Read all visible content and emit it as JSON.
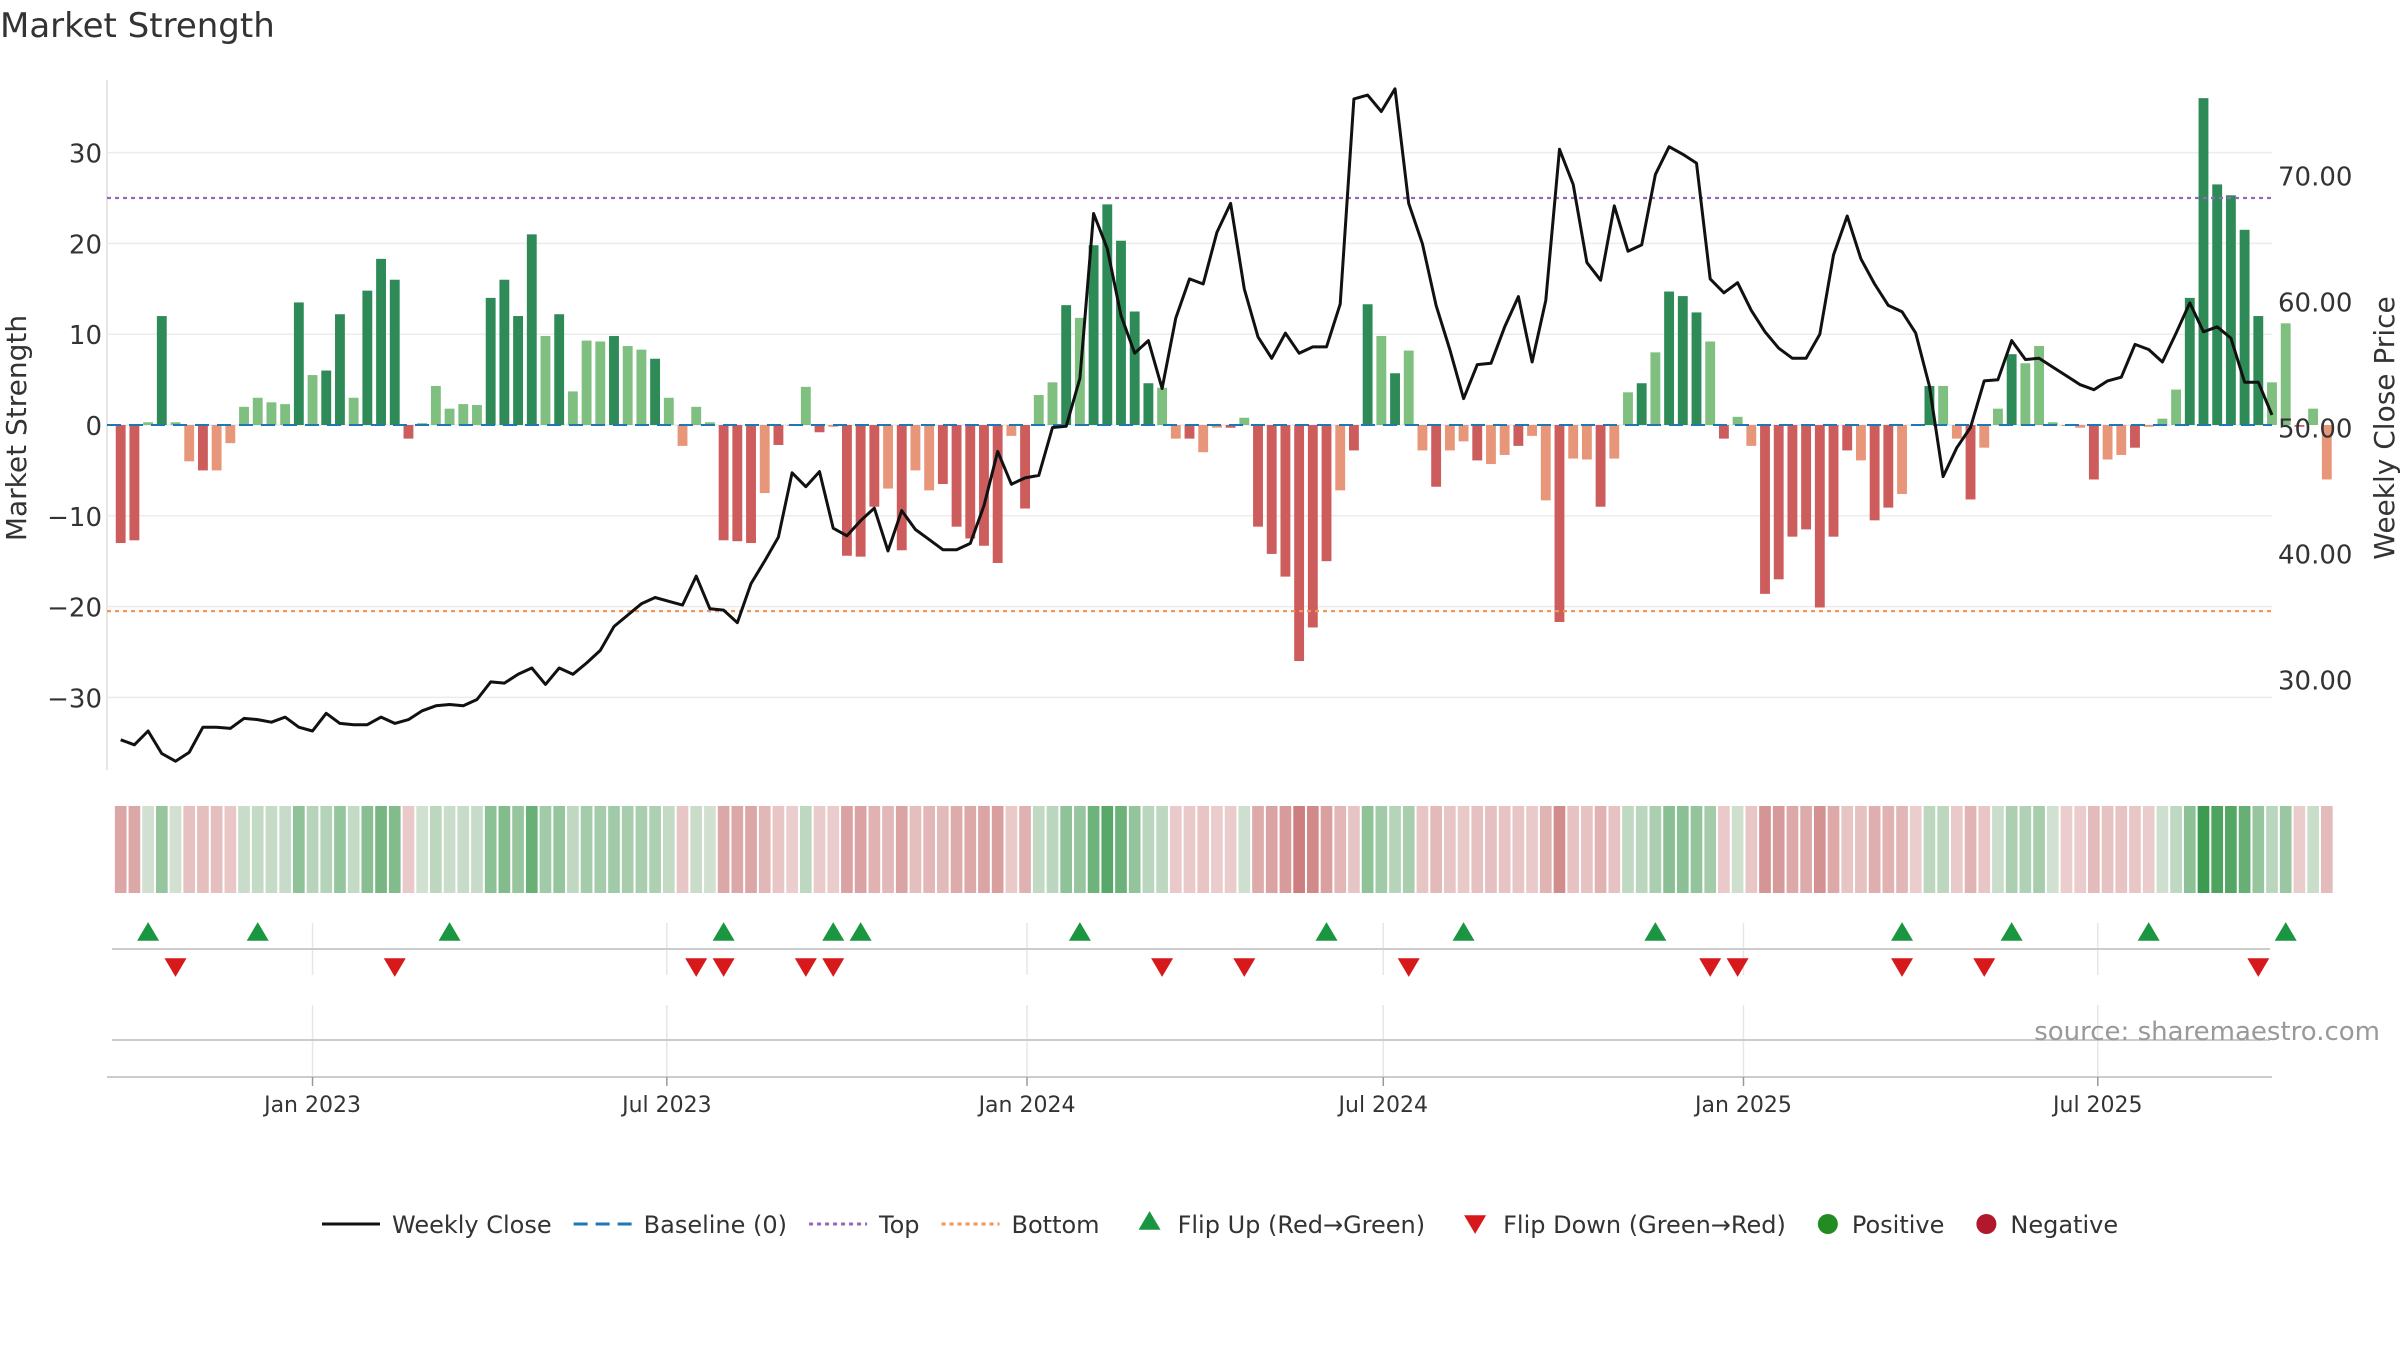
{
  "chart_data": {
    "type": "bar+line",
    "title": "Market Strength",
    "ylabel_left": "Market Strength",
    "ylabel_right": "Weekly Close Price",
    "y_left_ticks": [
      30,
      20,
      10,
      0,
      -10,
      -20,
      -30
    ],
    "y_left_tick_labels": [
      "30",
      "20",
      "10",
      "0",
      "−10",
      "−20",
      "−30"
    ],
    "y_right_ticks": [
      70,
      60,
      50,
      40,
      30
    ],
    "y_right_tick_labels": [
      "70.00",
      "60.00",
      "50.00",
      "40.00",
      "30.00"
    ],
    "y_left_range": [
      -38,
      38
    ],
    "y_right_range": [
      22.8,
      77.6
    ],
    "x_range": [
      "2022-09-18",
      "2025-09-28"
    ],
    "x_ticks": [
      "2023-01-01",
      "2023-07-01",
      "2024-01-01",
      "2024-07-01",
      "2025-01-01",
      "2025-07-01"
    ],
    "x_tick_labels": [
      "Jan 2023",
      "Jul 2023",
      "Jan 2024",
      "Jul 2024",
      "Jan 2025",
      "Jul 2025"
    ],
    "start_week": "2022-09-25",
    "top_line": 25,
    "bottom_line": -20.5,
    "baseline": 0,
    "grid": true,
    "legend_position": "bottom",
    "strength": [
      -13,
      -12.7,
      0.3,
      12,
      0.3,
      -4,
      -5,
      -5,
      -2,
      2,
      3,
      2.5,
      2.3,
      13.5,
      5.5,
      6,
      12.2,
      3,
      14.8,
      18.3,
      16,
      -1.5,
      0.2,
      4.3,
      1.8,
      2.3,
      2.2,
      14,
      16,
      12,
      21,
      9.8,
      12.2,
      3.7,
      9.3,
      9.2,
      9.8,
      8.7,
      8.3,
      7.3,
      3,
      -2.3,
      2,
      0.3,
      -12.7,
      -12.8,
      -13,
      -7.5,
      -2.2,
      -0.1,
      4.2,
      -0.8,
      -0.2,
      -14.4,
      -14.5,
      -9,
      -7,
      -13.8,
      -5,
      -7.2,
      -6.5,
      -11.2,
      -12.5,
      -13.3,
      -15.2,
      -1.2,
      -9.2,
      3.3,
      4.7,
      13.2,
      11.8,
      19.8,
      24.3,
      20.3,
      12.5,
      4.6,
      4.1,
      -1.5,
      -1.5,
      -3,
      -0.3,
      -0.3,
      0.8,
      -11.2,
      -14.2,
      -16.7,
      -26,
      -22.3,
      -15,
      -7.2,
      -2.8,
      13.3,
      9.8,
      5.7,
      8.2,
      -2.8,
      -6.8,
      -2.8,
      -1.8,
      -3.9,
      -4.3,
      -3.3,
      -2.3,
      -1.2,
      -8.3,
      -21.7,
      -3.7,
      -3.8,
      -9,
      -3.7,
      3.6,
      4.6,
      8,
      14.7,
      14.2,
      12.4,
      9.2,
      -1.5,
      0.9,
      -2.3,
      -18.6,
      -17,
      -12.3,
      -11.5,
      -20.1,
      -12.3,
      -2.8,
      -3.9,
      -10.5,
      -9.1,
      -7.6,
      -0.1,
      4.3,
      4.3,
      -1.5,
      -8.2,
      -2.5,
      1.8,
      7.8,
      6.8,
      8.7,
      0.3,
      -0.1,
      -0.3,
      -6,
      -3.8,
      -3.3,
      -2.5,
      -0.2,
      0.7,
      3.9,
      14,
      36,
      26.5,
      25.3,
      21.5,
      12,
      4.7,
      11.2,
      -0.2,
      1.8,
      -6
    ],
    "close": [
      25.2,
      24.8,
      25.9,
      24.1,
      23.5,
      24.2,
      26.2,
      26.2,
      26.1,
      26.9,
      26.8,
      26.6,
      27.0,
      26.2,
      25.9,
      27.3,
      26.5,
      26.4,
      26.4,
      27.0,
      26.5,
      26.8,
      27.5,
      27.9,
      28.0,
      27.9,
      28.4,
      29.8,
      29.7,
      30.4,
      30.9,
      29.6,
      30.9,
      30.4,
      31.3,
      32.3,
      34.2,
      35.1,
      36.0,
      36.5,
      36.2,
      35.9,
      38.2,
      35.6,
      35.5,
      34.5,
      37.6,
      39.4,
      41.3,
      46.4,
      45.3,
      46.5,
      42.0,
      41.4,
      42.6,
      43.6,
      40.2,
      43.4,
      41.9,
      41.1,
      40.3,
      40.3,
      40.8,
      43.8,
      48.1,
      45.5,
      46.0,
      46.2,
      50.0,
      50.1,
      53.9,
      67.0,
      64.2,
      58.9,
      55.9,
      56.9,
      53.1,
      58.7,
      61.8,
      61.4,
      65.5,
      67.8,
      61.0,
      57.2,
      55.5,
      57.5,
      55.9,
      56.4,
      56.4,
      59.8,
      76.1,
      76.4,
      75.1,
      76.9,
      67.8,
      64.6,
      59.7,
      56.2,
      52.3,
      55.0,
      55.1,
      58.0,
      60.4,
      55.2,
      60.1,
      72.1,
      69.3,
      63.1,
      61.7,
      67.6,
      64.0,
      64.5,
      70.1,
      72.3,
      71.7,
      71.0,
      61.8,
      60.7,
      61.5,
      59.3,
      57.6,
      56.3,
      55.5,
      55.5,
      57.4,
      63.7,
      66.8,
      63.4,
      61.4,
      59.7,
      59.2,
      57.5,
      53.3,
      46.1,
      48.4,
      50.0,
      53.7,
      53.8,
      56.9,
      55.4,
      55.5,
      54.8,
      54.1,
      53.4,
      53.0,
      53.7,
      54.0,
      56.6,
      56.2,
      55.2,
      57.5,
      59.9,
      57.6,
      58.0,
      57.1,
      53.6,
      53.6,
      51.0
    ],
    "flip_up_weeks": [
      1,
      5,
      12,
      22,
      26,
      27,
      35,
      44,
      49,
      56,
      65,
      69,
      74,
      79,
      84
    ],
    "flip_down_weeks": [
      2,
      10,
      21,
      22,
      25,
      26,
      38,
      41,
      47,
      58,
      59,
      65,
      68,
      78
    ],
    "series": [
      {
        "name": "Weekly Close",
        "color": "#111111",
        "style": "solid"
      },
      {
        "name": "Baseline (0)",
        "color": "#1f77b4",
        "style": "dashed"
      },
      {
        "name": "Top",
        "color": "#9467bd",
        "style": "dotted"
      },
      {
        "name": "Bottom",
        "color": "#f0955a",
        "style": "dotted"
      },
      {
        "name": "Flip Up (Red→Green)",
        "color": "#1a9641",
        "marker": "triangle-up"
      },
      {
        "name": "Flip Down (Green→Red)",
        "color": "#d7191c",
        "marker": "triangle-down"
      },
      {
        "name": "Positive",
        "color": "#228b22",
        "marker": "circle"
      },
      {
        "name": "Negative",
        "color": "#b2182b",
        "marker": "circle"
      }
    ],
    "annotation": "source: sharemaestro.com"
  }
}
